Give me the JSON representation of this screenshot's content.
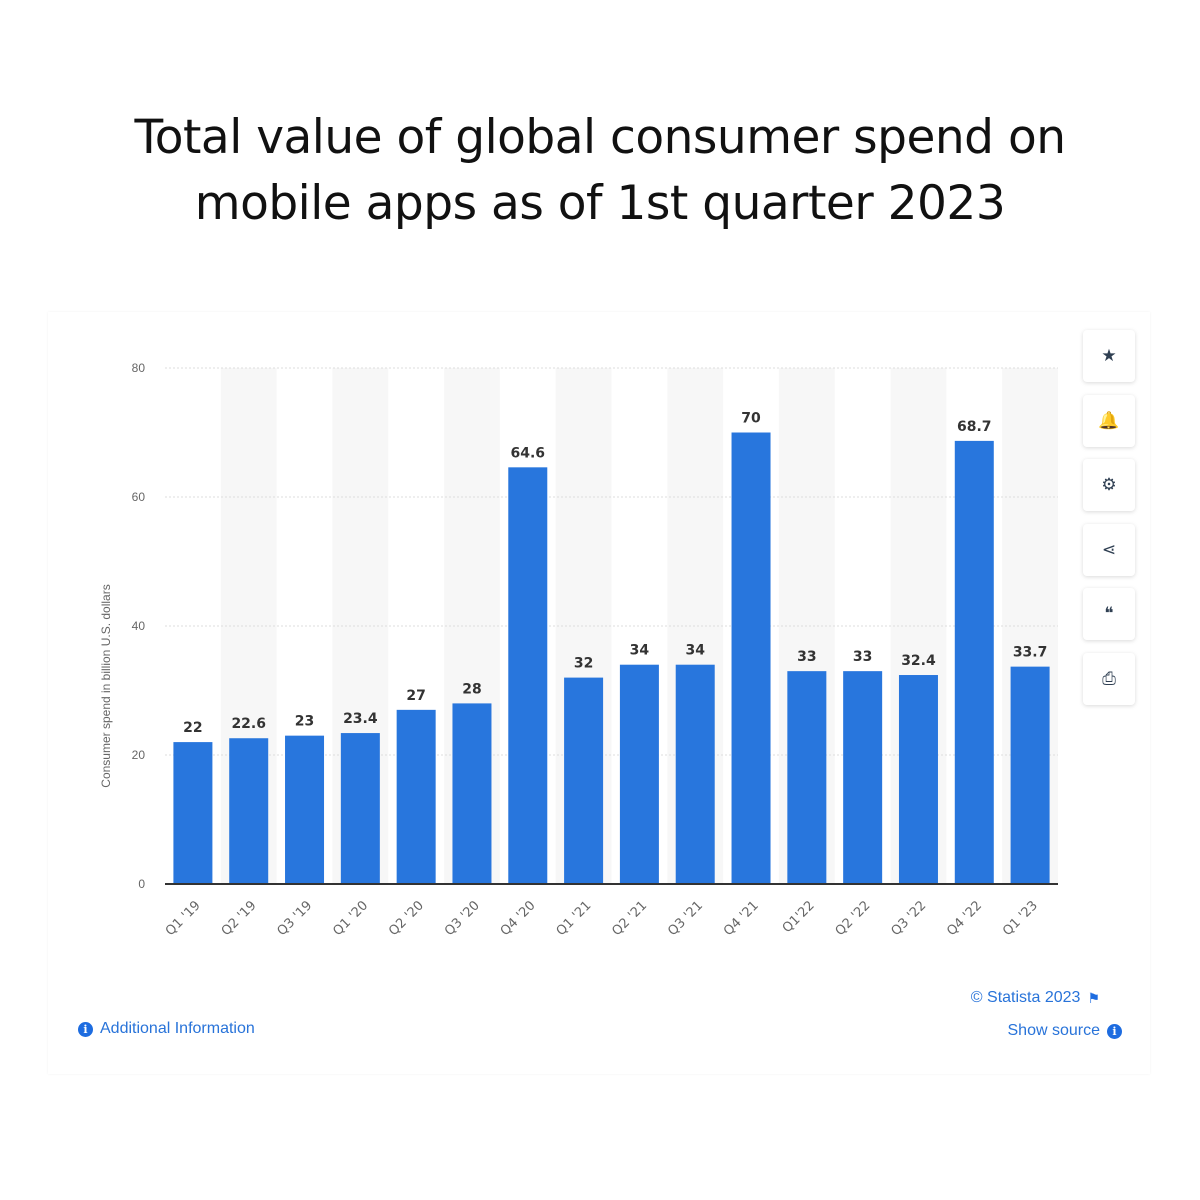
{
  "title_line1": "Total value of global consumer spend on",
  "title_line2": "mobile apps as of 1st quarter 2023",
  "chart_data": {
    "type": "bar",
    "title": "Total value of global consumer spend on mobile apps as of 1st quarter 2023",
    "ylabel": "Consumer spend in billion U.S. dollars",
    "ylim": [
      0,
      80
    ],
    "yticks": [
      0,
      20,
      40,
      60,
      80
    ],
    "grid": true,
    "categories": [
      "Q1 '19",
      "Q2 '19",
      "Q3 '19",
      "Q1 '20",
      "Q2 '20",
      "Q3 '20",
      "Q4 '20",
      "Q1 '21",
      "Q2 '21",
      "Q3 '21",
      "Q4 '21",
      "Q1'22",
      "Q2 '22",
      "Q3 '22",
      "Q4 '22",
      "Q1 '23"
    ],
    "values": [
      22,
      22.6,
      23,
      23.4,
      27,
      28,
      64.6,
      32,
      34,
      34,
      70,
      33,
      33,
      32.4,
      68.7,
      33.7
    ],
    "labels": [
      "22",
      "22.6",
      "23",
      "23.4",
      "27",
      "28",
      "64.6",
      "32",
      "34",
      "34",
      "70",
      "33",
      "33",
      "32.4",
      "68.7",
      "33.7"
    ],
    "bar_color": "#2876dd"
  },
  "toolbar": [
    {
      "icon": "star-icon",
      "glyph": "★"
    },
    {
      "icon": "bell-icon",
      "glyph": "🔔"
    },
    {
      "icon": "gear-icon",
      "glyph": "⚙"
    },
    {
      "icon": "share-icon",
      "glyph": "⋖"
    },
    {
      "icon": "quote-icon",
      "glyph": "❝"
    },
    {
      "icon": "print-icon",
      "glyph": "⎙"
    }
  ],
  "footer": {
    "additional_info": "Additional Information",
    "copyright": "© Statista 2023",
    "show_source": "Show source",
    "info_glyph": "i",
    "flag_glyph": "⚑"
  }
}
